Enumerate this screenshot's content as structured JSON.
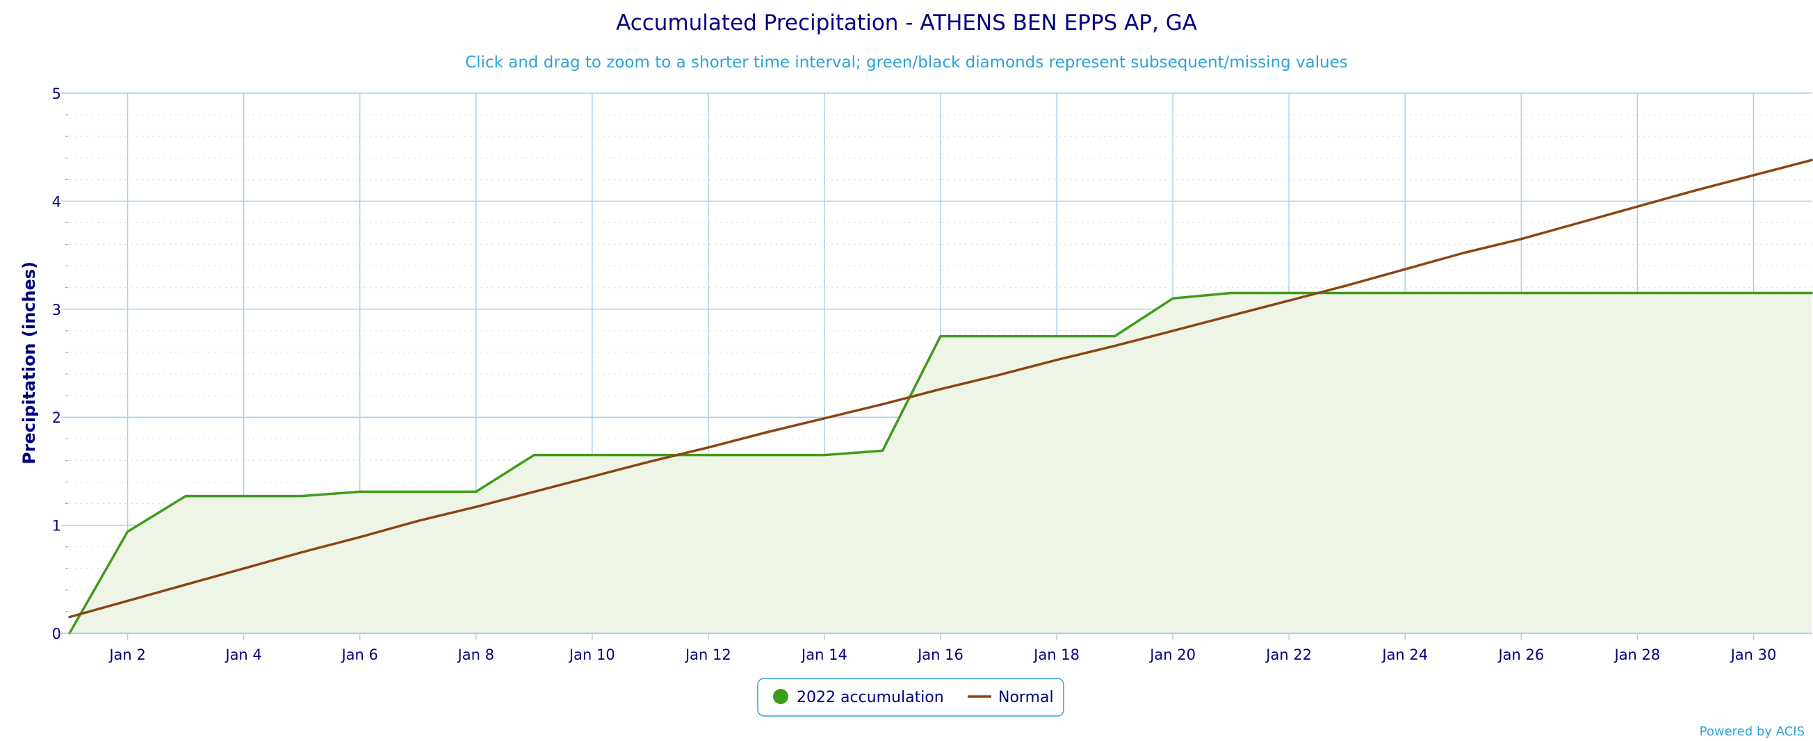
{
  "colors": {
    "accumulation": "#3f9c1a",
    "accumulation_fill": "#eef5e6",
    "normal": "#8b4513",
    "grid": "#a8d0ec",
    "minor_grid": "#d8d8d8",
    "text": "#000080",
    "subtitle": "#2ba3d9"
  },
  "chart_data": {
    "type": "line",
    "title": "Accumulated Precipitation - ATHENS BEN EPPS AP, GA",
    "subtitle": "Click and drag to zoom to a shorter time interval; green/black diamonds represent subsequent/missing values",
    "ylabel": "Precipitation (inches)",
    "xlabel": "",
    "ylim": [
      0,
      5
    ],
    "xlim": [
      1,
      31
    ],
    "x_unit": "day of January 2022",
    "y_ticks": [
      "0",
      "1",
      "2",
      "3",
      "4",
      "5"
    ],
    "x_ticks": [
      {
        "day": 2,
        "label": "Jan 2"
      },
      {
        "day": 4,
        "label": "Jan 4"
      },
      {
        "day": 6,
        "label": "Jan 6"
      },
      {
        "day": 8,
        "label": "Jan 8"
      },
      {
        "day": 10,
        "label": "Jan 10"
      },
      {
        "day": 12,
        "label": "Jan 12"
      },
      {
        "day": 14,
        "label": "Jan 14"
      },
      {
        "day": 16,
        "label": "Jan 16"
      },
      {
        "day": 18,
        "label": "Jan 18"
      },
      {
        "day": 20,
        "label": "Jan 20"
      },
      {
        "day": 22,
        "label": "Jan 22"
      },
      {
        "day": 24,
        "label": "Jan 24"
      },
      {
        "day": 26,
        "label": "Jan 26"
      },
      {
        "day": 28,
        "label": "Jan 28"
      },
      {
        "day": 30,
        "label": "Jan 30"
      }
    ],
    "grid": true,
    "legend_position": "bottom-center",
    "series": [
      {
        "name": "2022 accumulation",
        "type": "area",
        "x": [
          1,
          2,
          3,
          4,
          5,
          6,
          7,
          8,
          9,
          10,
          11,
          12,
          13,
          14,
          15,
          16,
          17,
          18,
          19,
          20,
          21,
          22,
          23,
          24,
          25,
          26,
          27,
          28,
          29,
          30,
          31
        ],
        "y": [
          0.0,
          0.94,
          1.27,
          1.27,
          1.27,
          1.31,
          1.31,
          1.31,
          1.65,
          1.65,
          1.65,
          1.65,
          1.65,
          1.65,
          1.69,
          2.75,
          2.75,
          2.75,
          2.75,
          3.1,
          3.15,
          3.15,
          3.15,
          3.15,
          3.15,
          3.15,
          3.15,
          3.15,
          3.15,
          3.15,
          3.15
        ]
      },
      {
        "name": "Normal",
        "type": "line",
        "x": [
          1,
          2,
          3,
          4,
          5,
          6,
          7,
          8,
          9,
          10,
          11,
          12,
          13,
          14,
          15,
          16,
          17,
          18,
          19,
          20,
          21,
          22,
          23,
          24,
          25,
          26,
          27,
          28,
          29,
          30,
          31
        ],
        "y": [
          0.15,
          0.3,
          0.45,
          0.6,
          0.75,
          0.89,
          1.04,
          1.17,
          1.31,
          1.45,
          1.59,
          1.72,
          1.86,
          1.99,
          2.12,
          2.26,
          2.39,
          2.53,
          2.66,
          2.8,
          2.94,
          3.08,
          3.22,
          3.37,
          3.52,
          3.65,
          3.8,
          3.95,
          4.1,
          4.24,
          4.38
        ]
      }
    ]
  },
  "legend": {
    "items": [
      {
        "label": "2022 accumulation",
        "symbol": "circle"
      },
      {
        "label": "Normal",
        "symbol": "line"
      }
    ]
  },
  "credits": {
    "text": "Powered by ACIS"
  }
}
